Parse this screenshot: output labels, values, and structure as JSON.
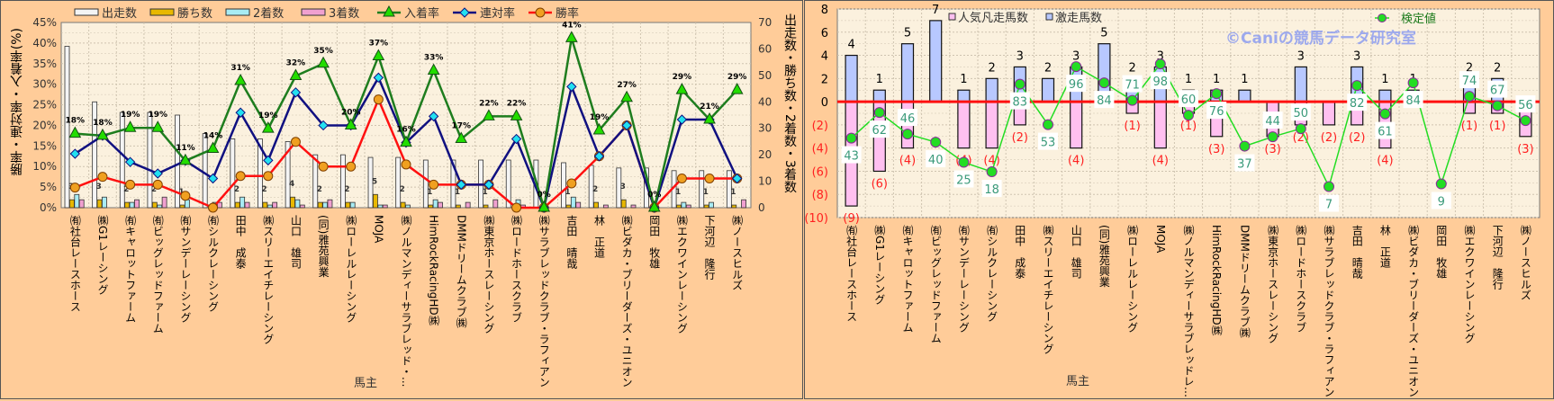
{
  "chart_data": [
    {
      "type": "bar+line",
      "title": "",
      "xlabel": "馬主",
      "ylabel_left": "勝率・連対率・入着率(%)",
      "ylabel_right": "出走数・勝ち数・2着数・3着数",
      "ylim_left": [
        0,
        45
      ],
      "ylim_right": [
        0,
        70
      ],
      "left_ticks": [
        "0%",
        "5%",
        "10%",
        "15%",
        "20%",
        "25%",
        "30%",
        "35%",
        "40%",
        "45%"
      ],
      "right_ticks": [
        "0",
        "10",
        "20",
        "30",
        "40",
        "50",
        "60",
        "70"
      ],
      "legend": [
        "出走数",
        "勝ち数",
        "2着数",
        "3着数",
        "入着率",
        "連対率",
        "勝率"
      ],
      "legend_position": "top",
      "grid": true,
      "categories": [
        "㈲社台レースホース",
        "㈱G1レーシング",
        "㈲キャロットファーム",
        "㈲ビッグレッドファーム",
        "㈲サンデーレーシング",
        "㈲シルクレーシング",
        "田中　成泰",
        "㈱スリーエイチレーシング",
        "山口　雄司",
        "(同)雅苑興業",
        "㈱ローレルレーシング",
        "MOJA",
        "㈱ノルマンディーサラブレッド・...",
        "HimRockRacingHD㈱",
        "DMMドリームクラブ㈱",
        "㈱東京ホースレーシング",
        "㈱ロードホースクラブ",
        "㈱サラブレッドクラブ・ラフィアン",
        "吉田　晴哉",
        "林　正道",
        "㈱ビダカ・ブリーダーズ・ユニオン",
        "岡田　牧雄",
        "㈱エクワインレーシング",
        "下河辺　隆行",
        "㈱ノースヒルズ"
      ],
      "series": [
        {
          "name": "出走数",
          "axis": "right",
          "kind": "bar",
          "color": "#F4F4F4",
          "values": [
            61,
            40,
            36,
            36,
            35,
            28,
            26,
            26,
            25,
            20,
            20,
            19,
            19,
            18,
            18,
            18,
            18,
            18,
            17,
            16,
            15,
            15,
            14,
            14,
            14
          ]
        },
        {
          "name": "勝ち数",
          "axis": "right",
          "kind": "bar",
          "color": "#E8B800",
          "values": [
            3,
            3,
            2,
            2,
            1,
            0,
            2,
            2,
            4,
            2,
            2,
            5,
            2,
            1,
            1,
            1,
            0,
            0,
            1,
            2,
            3,
            0,
            1,
            1,
            1
          ]
        },
        {
          "name": "2着数",
          "axis": "right",
          "kind": "bar",
          "color": "#A8ECF4",
          "values": [
            5,
            4,
            2,
            1,
            3,
            2,
            4,
            1,
            3,
            2,
            2,
            1,
            1,
            3,
            0,
            0,
            3,
            0,
            4,
            0,
            0,
            0,
            2,
            2,
            0
          ]
        },
        {
          "name": "3着数",
          "axis": "right",
          "kind": "bar",
          "color": "#F0A0D0",
          "values": [
            3,
            0,
            3,
            4,
            0,
            2,
            2,
            2,
            1,
            3,
            0,
            1,
            0,
            2,
            2,
            3,
            1,
            0,
            2,
            1,
            1,
            0,
            1,
            0,
            3
          ]
        },
        {
          "name": "入着率",
          "axis": "left",
          "kind": "line",
          "color": "#1E7D1E",
          "marker": "triangle",
          "values": [
            18.0,
            17.5,
            19.4,
            19.4,
            11.4,
            14.3,
            30.8,
            19.2,
            32.0,
            35.0,
            20.0,
            36.8,
            15.8,
            33.3,
            16.7,
            22.2,
            22.2,
            0,
            41.2,
            18.8,
            26.7,
            0,
            28.6,
            21.4,
            28.6
          ]
        },
        {
          "name": "連対率",
          "axis": "left",
          "kind": "line",
          "color": "#101080",
          "marker": "diamond",
          "values": [
            13.1,
            17.5,
            11.1,
            8.3,
            11.4,
            7.1,
            23.1,
            11.5,
            28.0,
            20.0,
            20.0,
            31.6,
            15.8,
            22.2,
            5.6,
            5.6,
            16.7,
            0,
            29.4,
            12.5,
            20.0,
            0,
            21.4,
            21.4,
            7.1
          ]
        },
        {
          "name": "勝率",
          "axis": "left",
          "kind": "line",
          "color": "#FF1010",
          "marker": "circle",
          "values": [
            4.9,
            7.5,
            5.6,
            5.6,
            2.9,
            0,
            7.7,
            7.7,
            16.0,
            10.0,
            10.0,
            26.3,
            10.5,
            5.6,
            5.6,
            5.6,
            0,
            0,
            5.9,
            12.5,
            20.0,
            0,
            7.1,
            7.1,
            7.1
          ]
        }
      ],
      "place_rate_labels": [
        "18%",
        "18%",
        "19%",
        "19%",
        "11%",
        "14%",
        "31%",
        "19%",
        "32%",
        "35%",
        "20%",
        "37%",
        "16%",
        "33%",
        "17%",
        "22%",
        "22%",
        "0%",
        "41%",
        "19%",
        "27%",
        "0%",
        "29%",
        "21%",
        "29%"
      ],
      "win_labels": [
        "3",
        "3",
        "2",
        "2",
        "1",
        "",
        "2",
        "2",
        "4",
        "2",
        "2",
        "5",
        "2",
        "1",
        "1",
        "1",
        "",
        "",
        "1",
        "2",
        "3",
        "",
        "1",
        "1",
        "1"
      ]
    },
    {
      "type": "bar+line",
      "xlabel": "馬主",
      "ylim": [
        -10,
        8
      ],
      "ticks": [
        "8",
        "6",
        "4",
        "2",
        "0",
        "(2)",
        "(4)",
        "(6)",
        "(8)",
        "(10)"
      ],
      "legend": [
        "人気凡走馬数",
        "激走馬数",
        "検定値"
      ],
      "legend_position": "top",
      "watermark": "©Caniの競馬データ研究室",
      "grid": true,
      "categories": [
        "㈲社台レースホース",
        "㈱G1レーシング",
        "㈲キャロットファーム",
        "㈲ビッグレッドファーム",
        "㈲サンデーレーシング",
        "㈲シルクレーシング",
        "田中　成泰",
        "㈱スリーエイチレーシング",
        "山口　雄司",
        "(同)雅苑興業",
        "㈱ローレルレーシング",
        "MOJA",
        "㈱ノルマンディーサラブレッドレ…",
        "HimRockRacingHD㈱",
        "DMMドリームクラブ㈱",
        "㈱東京ホースレーシング",
        "㈱ロードホースクラブ",
        "㈱サラブレッドクラブ・ラフィアン",
        "吉田　晴哉",
        "林　正道",
        "㈱ビダカ・ブリーダーズ・ユニオン",
        "岡田　牧雄",
        "㈱エクワインレーシング",
        "下河辺　隆行",
        "㈱ノースヒルズ"
      ],
      "series": [
        {
          "name": "激走馬数",
          "kind": "bar",
          "color": "#B8C8FF",
          "values": [
            4,
            1,
            5,
            7,
            1,
            2,
            3,
            2,
            3,
            5,
            2,
            3,
            1,
            1,
            1,
            0,
            3,
            0,
            3,
            1,
            1,
            0,
            2,
            2,
            0
          ]
        },
        {
          "name": "人気凡走馬数",
          "kind": "bar",
          "color": "#FFC0F0",
          "values": [
            -9,
            -6,
            -4,
            0,
            -4,
            -4,
            -2,
            0,
            -4,
            0,
            -1,
            -4,
            -1,
            -3,
            0,
            -3,
            -2,
            -2,
            -2,
            -4,
            0,
            0,
            -1,
            -1,
            -3
          ]
        },
        {
          "name": "検定値",
          "kind": "line",
          "color": "#22DD22",
          "values": [
            43,
            62,
            46,
            40,
            25,
            18,
            83,
            53,
            96,
            84,
            71,
            98,
            60,
            76,
            37,
            44,
            50,
            7,
            82,
            61,
            84,
            9,
            74,
            67,
            56
          ]
        }
      ]
    }
  ],
  "colors": {
    "panel_bg": "#FFCC99",
    "plot_bg": "#FBF1DE",
    "zero_line": "#FF1010",
    "negative_label": "#FF2020",
    "test_label": "#3A9A7A",
    "watermark": "#8C9CF0"
  }
}
